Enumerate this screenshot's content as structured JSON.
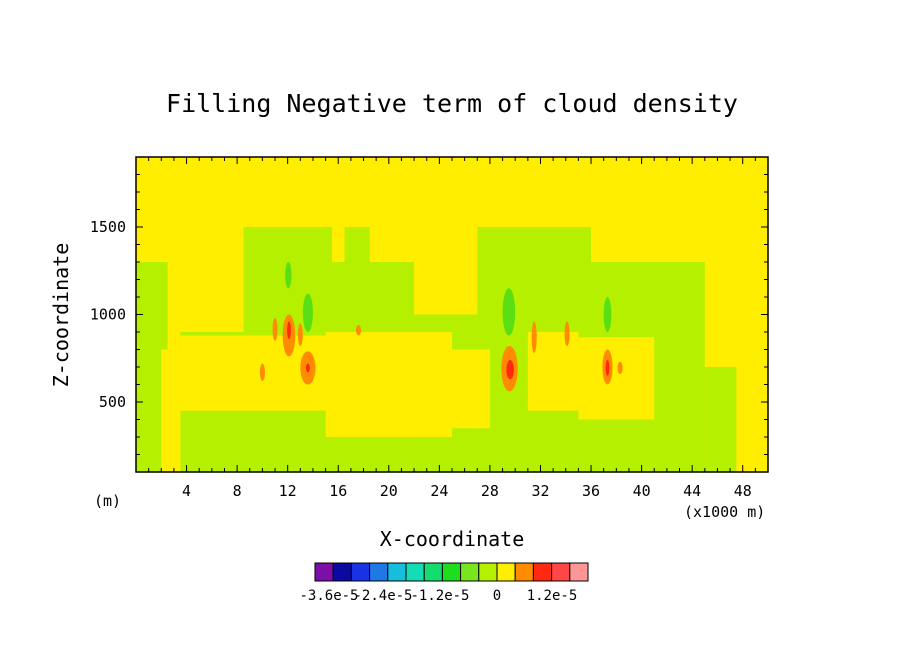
{
  "chart_data": {
    "type": "heatmap",
    "title": "Filling Negative term of cloud density",
    "xlabel": "X-coordinate",
    "ylabel": "Z-coordinate",
    "x_unit_left": "(m)",
    "x_unit_right": "(x1000 m)",
    "xlim": [
      0,
      50
    ],
    "ylim": [
      100,
      1900
    ],
    "xticks": [
      4,
      8,
      12,
      16,
      20,
      24,
      28,
      32,
      36,
      40,
      44,
      48
    ],
    "yticks": [
      500,
      1000,
      1500
    ],
    "background_level": "0",
    "colorbar": {
      "colors": [
        "#7b0fa8",
        "#0a0aa0",
        "#1a32e6",
        "#1e78e6",
        "#14bedc",
        "#14dcb4",
        "#14dc6e",
        "#1edc1e",
        "#78e61e",
        "#b4f000",
        "#ffee00",
        "#ff8c00",
        "#ff2810",
        "#ff4646",
        "#ff9696"
      ],
      "labels": [
        "-3.6e-5",
        "-2.4e-5",
        "-1.2e-5",
        "0",
        "1.2e-5"
      ]
    },
    "regions": [
      {
        "level": "slightly-negative",
        "color": "#b4f000",
        "x": [
          0,
          2.5
        ],
        "z": [
          100,
          1300
        ]
      },
      {
        "level": "slightly-negative",
        "color": "#b4f000",
        "x": [
          3.5,
          8.5
        ],
        "z": [
          100,
          900
        ]
      },
      {
        "level": "slightly-negative",
        "color": "#b4f000",
        "x": [
          8.5,
          15.5
        ],
        "z": [
          100,
          1500
        ]
      },
      {
        "level": "slightly-negative",
        "color": "#b4f000",
        "x": [
          15.5,
          22
        ],
        "z": [
          100,
          1300
        ]
      },
      {
        "level": "slightly-negative",
        "color": "#b4f000",
        "x": [
          16.5,
          18.5
        ],
        "z": [
          1000,
          1500
        ]
      },
      {
        "level": "slightly-negative",
        "color": "#b4f000",
        "x": [
          22,
          27
        ],
        "z": [
          100,
          1000
        ]
      },
      {
        "level": "slightly-negative",
        "color": "#b4f000",
        "x": [
          27,
          36
        ],
        "z": [
          100,
          1500
        ]
      },
      {
        "level": "slightly-negative",
        "color": "#b4f000",
        "x": [
          36,
          45
        ],
        "z": [
          100,
          1300
        ]
      },
      {
        "level": "slightly-negative",
        "color": "#b4f000",
        "x": [
          45,
          47.5
        ],
        "z": [
          100,
          700
        ]
      },
      {
        "level": "zero",
        "color": "#ffee00",
        "x": [
          3.5,
          15
        ],
        "z": [
          450,
          880
        ]
      },
      {
        "level": "zero",
        "color": "#ffee00",
        "x": [
          15,
          25
        ],
        "z": [
          300,
          900
        ]
      },
      {
        "level": "zero",
        "color": "#ffee00",
        "x": [
          25,
          28
        ],
        "z": [
          350,
          800
        ]
      },
      {
        "level": "zero",
        "color": "#ffee00",
        "x": [
          31,
          35
        ],
        "z": [
          450,
          900
        ]
      },
      {
        "level": "zero",
        "color": "#ffee00",
        "x": [
          35,
          41
        ],
        "z": [
          400,
          870
        ]
      },
      {
        "level": "zero",
        "color": "#ffee00",
        "x": [
          2,
          3.5
        ],
        "z": [
          100,
          800
        ]
      },
      {
        "level": "negative",
        "color": "#5ade14",
        "x": [
          13.2,
          14
        ],
        "z": [
          900,
          1120
        ]
      },
      {
        "level": "negative",
        "color": "#5ade14",
        "x": [
          29,
          30
        ],
        "z": [
          880,
          1150
        ]
      },
      {
        "level": "negative",
        "color": "#5ade14",
        "x": [
          37,
          37.6
        ],
        "z": [
          900,
          1100
        ]
      },
      {
        "level": "negative",
        "color": "#5ade14",
        "x": [
          11.8,
          12.3
        ],
        "z": [
          1150,
          1300
        ]
      },
      {
        "level": "positive",
        "color": "#ff8c00",
        "x": [
          13,
          14.2
        ],
        "z": [
          600,
          790
        ]
      },
      {
        "level": "positive",
        "color": "#ff8c00",
        "x": [
          28.9,
          30.2
        ],
        "z": [
          560,
          820
        ]
      },
      {
        "level": "positive",
        "color": "#ff8c00",
        "x": [
          11.6,
          12.6
        ],
        "z": [
          760,
          1000
        ]
      },
      {
        "level": "positive",
        "color": "#ff8c00",
        "x": [
          12.8,
          13.2
        ],
        "z": [
          820,
          950
        ]
      },
      {
        "level": "positive",
        "color": "#ff8c00",
        "x": [
          9.8,
          10.2
        ],
        "z": [
          620,
          720
        ]
      },
      {
        "level": "positive",
        "color": "#ff8c00",
        "x": [
          10.8,
          11.2
        ],
        "z": [
          850,
          980
        ]
      },
      {
        "level": "positive",
        "color": "#ff8c00",
        "x": [
          31.3,
          31.7
        ],
        "z": [
          780,
          960
        ]
      },
      {
        "level": "positive",
        "color": "#ff8c00",
        "x": [
          33.9,
          34.3
        ],
        "z": [
          820,
          960
        ]
      },
      {
        "level": "positive",
        "color": "#ff8c00",
        "x": [
          36.9,
          37.7
        ],
        "z": [
          600,
          800
        ]
      },
      {
        "level": "positive",
        "color": "#ff8c00",
        "x": [
          38.1,
          38.5
        ],
        "z": [
          660,
          730
        ]
      },
      {
        "level": "positive",
        "color": "#ff8c00",
        "x": [
          17.4,
          17.8
        ],
        "z": [
          880,
          940
        ]
      },
      {
        "level": "high-positive",
        "color": "#ff2810",
        "x": [
          29.3,
          29.9
        ],
        "z": [
          630,
          740
        ]
      },
      {
        "level": "high-positive",
        "color": "#ff2810",
        "x": [
          11.95,
          12.25
        ],
        "z": [
          860,
          960
        ]
      },
      {
        "level": "high-positive",
        "color": "#ff2810",
        "x": [
          37.15,
          37.45
        ],
        "z": [
          650,
          740
        ]
      },
      {
        "level": "high-positive",
        "color": "#ff2810",
        "x": [
          13.45,
          13.75
        ],
        "z": [
          670,
          720
        ]
      }
    ]
  }
}
